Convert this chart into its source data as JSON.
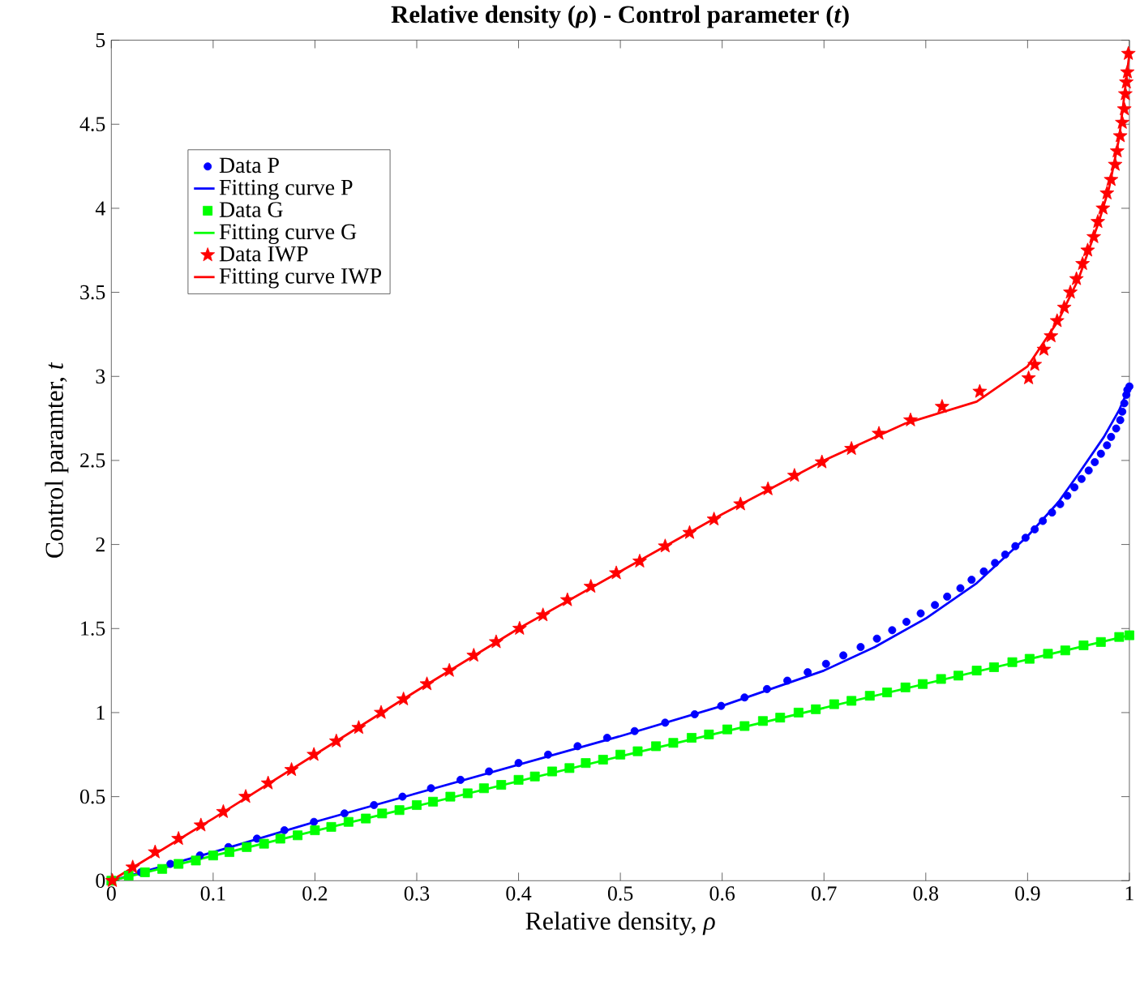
{
  "chart_data": {
    "type": "scatter",
    "title": "Relative density (*ρ*) - Control parameter (*t*)",
    "xlabel": "Relative density, *ρ*",
    "ylabel": "Control paramter, *t*",
    "xlim": [
      0,
      1
    ],
    "ylim": [
      0,
      5
    ],
    "xticks": [
      0,
      0.1,
      0.2,
      0.3,
      0.4,
      0.5,
      0.6,
      0.7,
      0.8,
      0.9,
      1
    ],
    "yticks": [
      0,
      0.5,
      1,
      1.5,
      2,
      2.5,
      3,
      3.5,
      4,
      4.5,
      5
    ],
    "grid": false,
    "legend": "top left",
    "series": [
      {
        "name": "Data P",
        "marker": "circle",
        "color": "#0000ff",
        "x": [
          0.029,
          0.058,
          0.087,
          0.115,
          0.143,
          0.17,
          0.199,
          0.229,
          0.258,
          0.286,
          0.314,
          0.343,
          0.371,
          0.4,
          0.429,
          0.458,
          0.487,
          0.514,
          0.544,
          0.573,
          0.599,
          0.622,
          0.644,
          0.664,
          0.684,
          0.702,
          0.719,
          0.736,
          0.752,
          0.767,
          0.781,
          0.795,
          0.809,
          0.821,
          0.834,
          0.845,
          0.857,
          0.868,
          0.878,
          0.888,
          0.898,
          0.907,
          0.915,
          0.924,
          0.932,
          0.939,
          0.946,
          0.953,
          0.96,
          0.966,
          0.972,
          0.978,
          0.982,
          0.987,
          0.991,
          0.993,
          0.995,
          0.997,
          0.998,
          1.0
        ],
        "values": [
          0.05,
          0.1,
          0.15,
          0.2,
          0.25,
          0.3,
          0.35,
          0.4,
          0.45,
          0.5,
          0.55,
          0.6,
          0.65,
          0.7,
          0.75,
          0.8,
          0.85,
          0.89,
          0.94,
          0.99,
          1.04,
          1.09,
          1.14,
          1.19,
          1.24,
          1.29,
          1.34,
          1.39,
          1.44,
          1.49,
          1.54,
          1.59,
          1.64,
          1.69,
          1.74,
          1.79,
          1.84,
          1.89,
          1.94,
          1.99,
          2.04,
          2.09,
          2.14,
          2.19,
          2.24,
          2.29,
          2.34,
          2.39,
          2.44,
          2.49,
          2.54,
          2.59,
          2.64,
          2.69,
          2.74,
          2.79,
          2.84,
          2.89,
          2.92,
          2.94
        ]
      },
      {
        "name": "Fitting curve P",
        "type": "line",
        "color": "#0000ff",
        "x": [
          0,
          0.1,
          0.2,
          0.3,
          0.4,
          0.5,
          0.6,
          0.7,
          0.75,
          0.8,
          0.85,
          0.9,
          0.93,
          0.95,
          0.975,
          0.99,
          1
        ],
        "values": [
          0,
          0.17,
          0.35,
          0.52,
          0.69,
          0.86,
          1.04,
          1.25,
          1.39,
          1.56,
          1.77,
          2.05,
          2.25,
          2.42,
          2.64,
          2.8,
          2.94
        ]
      },
      {
        "name": "Data G",
        "marker": "square",
        "color": "#00ff00",
        "x": [
          0,
          0.017,
          0.033,
          0.05,
          0.066,
          0.083,
          0.1,
          0.116,
          0.133,
          0.15,
          0.166,
          0.183,
          0.2,
          0.216,
          0.233,
          0.25,
          0.266,
          0.283,
          0.3,
          0.316,
          0.333,
          0.35,
          0.366,
          0.383,
          0.4,
          0.416,
          0.433,
          0.45,
          0.466,
          0.483,
          0.5,
          0.517,
          0.535,
          0.552,
          0.57,
          0.587,
          0.605,
          0.622,
          0.64,
          0.657,
          0.675,
          0.692,
          0.71,
          0.727,
          0.745,
          0.762,
          0.78,
          0.797,
          0.815,
          0.832,
          0.85,
          0.867,
          0.885,
          0.902,
          0.92,
          0.937,
          0.955,
          0.972,
          0.99,
          1.0
        ],
        "values": [
          0,
          0.03,
          0.05,
          0.07,
          0.1,
          0.12,
          0.15,
          0.17,
          0.2,
          0.22,
          0.25,
          0.27,
          0.3,
          0.32,
          0.35,
          0.37,
          0.4,
          0.42,
          0.45,
          0.47,
          0.5,
          0.52,
          0.55,
          0.57,
          0.6,
          0.62,
          0.65,
          0.67,
          0.7,
          0.72,
          0.75,
          0.77,
          0.8,
          0.82,
          0.85,
          0.87,
          0.9,
          0.92,
          0.95,
          0.97,
          1.0,
          1.02,
          1.05,
          1.07,
          1.1,
          1.12,
          1.15,
          1.17,
          1.2,
          1.22,
          1.25,
          1.27,
          1.3,
          1.32,
          1.35,
          1.37,
          1.4,
          1.42,
          1.45,
          1.46
        ]
      },
      {
        "name": "Fitting curve G",
        "type": "line",
        "color": "#00ff00",
        "x": [
          0,
          0.25,
          0.5,
          0.75,
          1
        ],
        "values": [
          0,
          0.37,
          0.74,
          1.1,
          1.46
        ]
      },
      {
        "name": "Data IWP",
        "marker": "star",
        "color": "#ff0000",
        "x": [
          0.001,
          0.021,
          0.043,
          0.066,
          0.088,
          0.11,
          0.132,
          0.154,
          0.177,
          0.199,
          0.221,
          0.243,
          0.265,
          0.287,
          0.31,
          0.332,
          0.356,
          0.378,
          0.401,
          0.424,
          0.448,
          0.471,
          0.496,
          0.519,
          0.544,
          0.568,
          0.592,
          0.618,
          0.645,
          0.671,
          0.698,
          0.727,
          0.754,
          0.785,
          0.816,
          0.853,
          0.901,
          0.907,
          0.916,
          0.923,
          0.929,
          0.936,
          0.942,
          0.948,
          0.954,
          0.959,
          0.965,
          0.969,
          0.974,
          0.978,
          0.982,
          0.986,
          0.988,
          0.991,
          0.993,
          0.995,
          0.996,
          0.997,
          0.998,
          0.999
        ],
        "values": [
          0,
          0.08,
          0.17,
          0.25,
          0.33,
          0.41,
          0.5,
          0.58,
          0.66,
          0.75,
          0.83,
          0.91,
          1.0,
          1.08,
          1.17,
          1.25,
          1.34,
          1.42,
          1.5,
          1.58,
          1.67,
          1.75,
          1.83,
          1.9,
          1.99,
          2.07,
          2.15,
          2.24,
          2.33,
          2.41,
          2.49,
          2.57,
          2.66,
          2.74,
          2.82,
          2.91,
          2.99,
          3.07,
          3.16,
          3.24,
          3.33,
          3.41,
          3.5,
          3.58,
          3.67,
          3.75,
          3.83,
          3.92,
          4.0,
          4.09,
          4.17,
          4.26,
          4.34,
          4.43,
          4.51,
          4.59,
          4.68,
          4.75,
          4.81,
          4.92
        ]
      },
      {
        "name": "Fitting curve IWP",
        "type": "line",
        "color": "#ff0000",
        "x": [
          0,
          0.1,
          0.2,
          0.3,
          0.4,
          0.5,
          0.6,
          0.7,
          0.78,
          0.85,
          0.9,
          0.93,
          0.95,
          0.97,
          0.98,
          0.99,
          1
        ],
        "values": [
          0,
          0.37,
          0.75,
          1.13,
          1.5,
          1.84,
          2.18,
          2.5,
          2.72,
          2.85,
          3.06,
          3.33,
          3.58,
          3.92,
          4.12,
          4.42,
          4.92
        ]
      }
    ]
  }
}
